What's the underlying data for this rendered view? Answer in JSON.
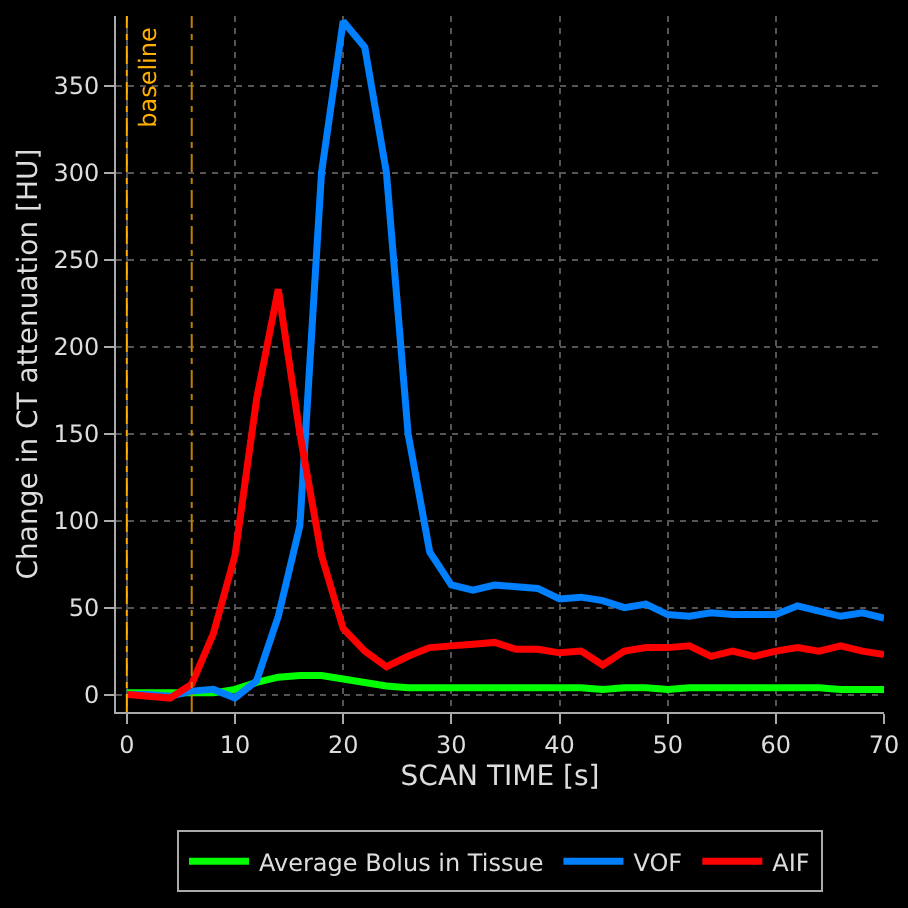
{
  "chart_data": {
    "type": "line",
    "xlabel": "SCAN TIME [s]",
    "ylabel": "Change in CT attenuation [HU]",
    "x": [
      0,
      2,
      4,
      6,
      8,
      10,
      12,
      14,
      16,
      18,
      20,
      22,
      24,
      26,
      28,
      30,
      32,
      34,
      36,
      38,
      40,
      42,
      44,
      46,
      48,
      50,
      52,
      54,
      56,
      58,
      60,
      62,
      64,
      66,
      68,
      70
    ],
    "series": [
      {
        "name": "Average Bolus in Tissue",
        "color": "#00ff00",
        "values": [
          1,
          1,
          1,
          1,
          1,
          3,
          7,
          10,
          11,
          11,
          9,
          7,
          5,
          4,
          4,
          4,
          4,
          4,
          4,
          4,
          4,
          4,
          3,
          4,
          4,
          3,
          4,
          4,
          4,
          4,
          4,
          4,
          4,
          3,
          3,
          3
        ]
      },
      {
        "name": "VOF",
        "color": "#0080ff",
        "values": [
          0,
          0,
          -1,
          2,
          3,
          -2,
          8,
          45,
          97,
          300,
          387,
          372,
          300,
          150,
          82,
          63,
          60,
          63,
          62,
          61,
          55,
          56,
          54,
          50,
          52,
          46,
          45,
          47,
          46,
          46,
          46,
          51,
          48,
          45,
          47,
          44
        ]
      },
      {
        "name": "AIF",
        "color": "#ff0000",
        "values": [
          0,
          -1,
          -2,
          6,
          35,
          80,
          170,
          233,
          150,
          80,
          38,
          25,
          16,
          22,
          27,
          28,
          29,
          30,
          26,
          26,
          24,
          25,
          17,
          25,
          27,
          27,
          28,
          22,
          25,
          22,
          25,
          27,
          25,
          28,
          25,
          23
        ]
      }
    ],
    "xlim": [
      -1,
      70
    ],
    "ylim": [
      -10,
      390
    ],
    "xticks": [
      0,
      10,
      20,
      30,
      40,
      50,
      60,
      70
    ],
    "yticks": [
      0,
      50,
      100,
      150,
      200,
      250,
      300,
      350
    ],
    "ref_lines": [
      {
        "axis": "x",
        "value": 0,
        "label": "baseline",
        "color": "#ffb000",
        "line_style": "dashdot"
      },
      {
        "axis": "x",
        "value": 6,
        "color": "#c08000",
        "line_style": "dashdot"
      }
    ],
    "grid": true,
    "legend": "bottom",
    "marker": "none",
    "line_style": "solid"
  }
}
